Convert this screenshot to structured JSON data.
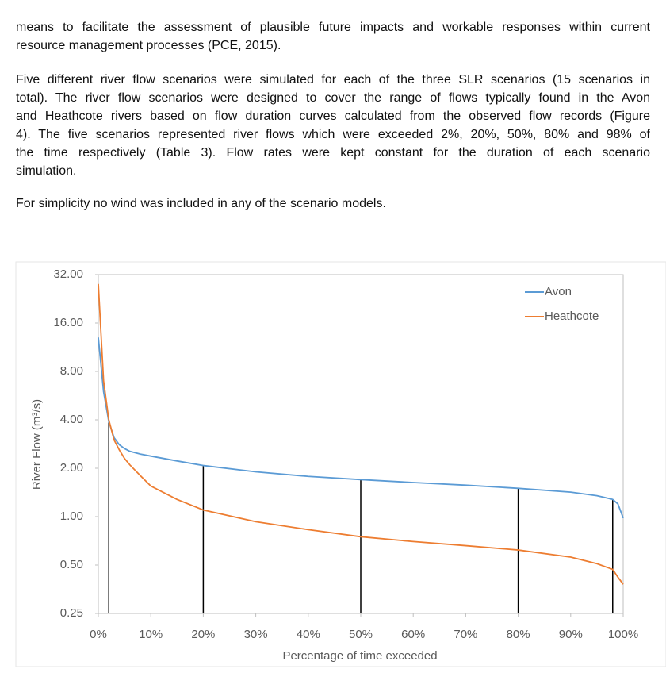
{
  "document": {
    "paragraphs": [
      [
        "means to facilitate the assessment of plausible future impacts and workable responses within current",
        "resource management processes (PCE, 2015)."
      ],
      [
        "Five different river flow scenarios were simulated for each of the three SLR scenarios (15 scenarios in",
        "total). The river flow scenarios were designed to cover the range of flows typically found in the Avon",
        "and Heathcote rivers based on flow duration curves calculated from the observed flow records (Figure",
        "4). The five scenarios represented river flows which were exceeded 2%, 20%, 50%, 80% and 98% of",
        "the time respectively (Table 3). Flow rates were kept constant for the duration of each scenario",
        "simulation."
      ],
      [
        "For simplicity no wind was included in any of the scenario models."
      ]
    ]
  },
  "chart_data": {
    "type": "line",
    "x_label": "Percentage of time exceeded",
    "y_label": "River Flow (m³/s)",
    "x": [
      0,
      1,
      2,
      3,
      4,
      5,
      6,
      8,
      10,
      15,
      20,
      30,
      40,
      50,
      60,
      70,
      80,
      90,
      95,
      98,
      99,
      100
    ],
    "series": [
      {
        "name": "Avon",
        "color": "#5b9bd5",
        "values": [
          13,
          6.0,
          3.9,
          3.1,
          2.8,
          2.65,
          2.55,
          2.45,
          2.38,
          2.22,
          2.08,
          1.9,
          1.78,
          1.7,
          1.63,
          1.57,
          1.5,
          1.42,
          1.35,
          1.28,
          1.2,
          0.98
        ]
      },
      {
        "name": "Heathcote",
        "color": "#ed7d31",
        "values": [
          28,
          7.0,
          4.0,
          3.0,
          2.6,
          2.3,
          2.1,
          1.8,
          1.55,
          1.28,
          1.1,
          0.93,
          0.83,
          0.75,
          0.7,
          0.66,
          0.62,
          0.56,
          0.51,
          0.47,
          0.42,
          0.38
        ]
      }
    ],
    "markers_x": [
      2,
      20,
      50,
      80,
      98
    ],
    "xlim": [
      0,
      100
    ],
    "xticks": [
      {
        "value": 0,
        "label": "0%"
      },
      {
        "value": 10,
        "label": "10%"
      },
      {
        "value": 20,
        "label": "20%"
      },
      {
        "value": 30,
        "label": "30%"
      },
      {
        "value": 40,
        "label": "40%"
      },
      {
        "value": 50,
        "label": "50%"
      },
      {
        "value": 60,
        "label": "60%"
      },
      {
        "value": 70,
        "label": "70%"
      },
      {
        "value": 80,
        "label": "80%"
      },
      {
        "value": 90,
        "label": "90%"
      },
      {
        "value": 100,
        "label": "100%"
      }
    ],
    "ylim": [
      0.25,
      32
    ],
    "yscale": "log",
    "yticks": [
      0.25,
      {
        "value": 0.5,
        "label": "0.50"
      },
      {
        "value": 1,
        "label": "1.00"
      },
      {
        "value": 2,
        "label": "2.00"
      },
      {
        "value": 4,
        "label": "4.00"
      },
      {
        "value": 8,
        "label": "8.00"
      },
      {
        "value": 16,
        "label": "16.00"
      },
      {
        "value": 32,
        "label": "32.00"
      }
    ],
    "legend": "top-right"
  }
}
